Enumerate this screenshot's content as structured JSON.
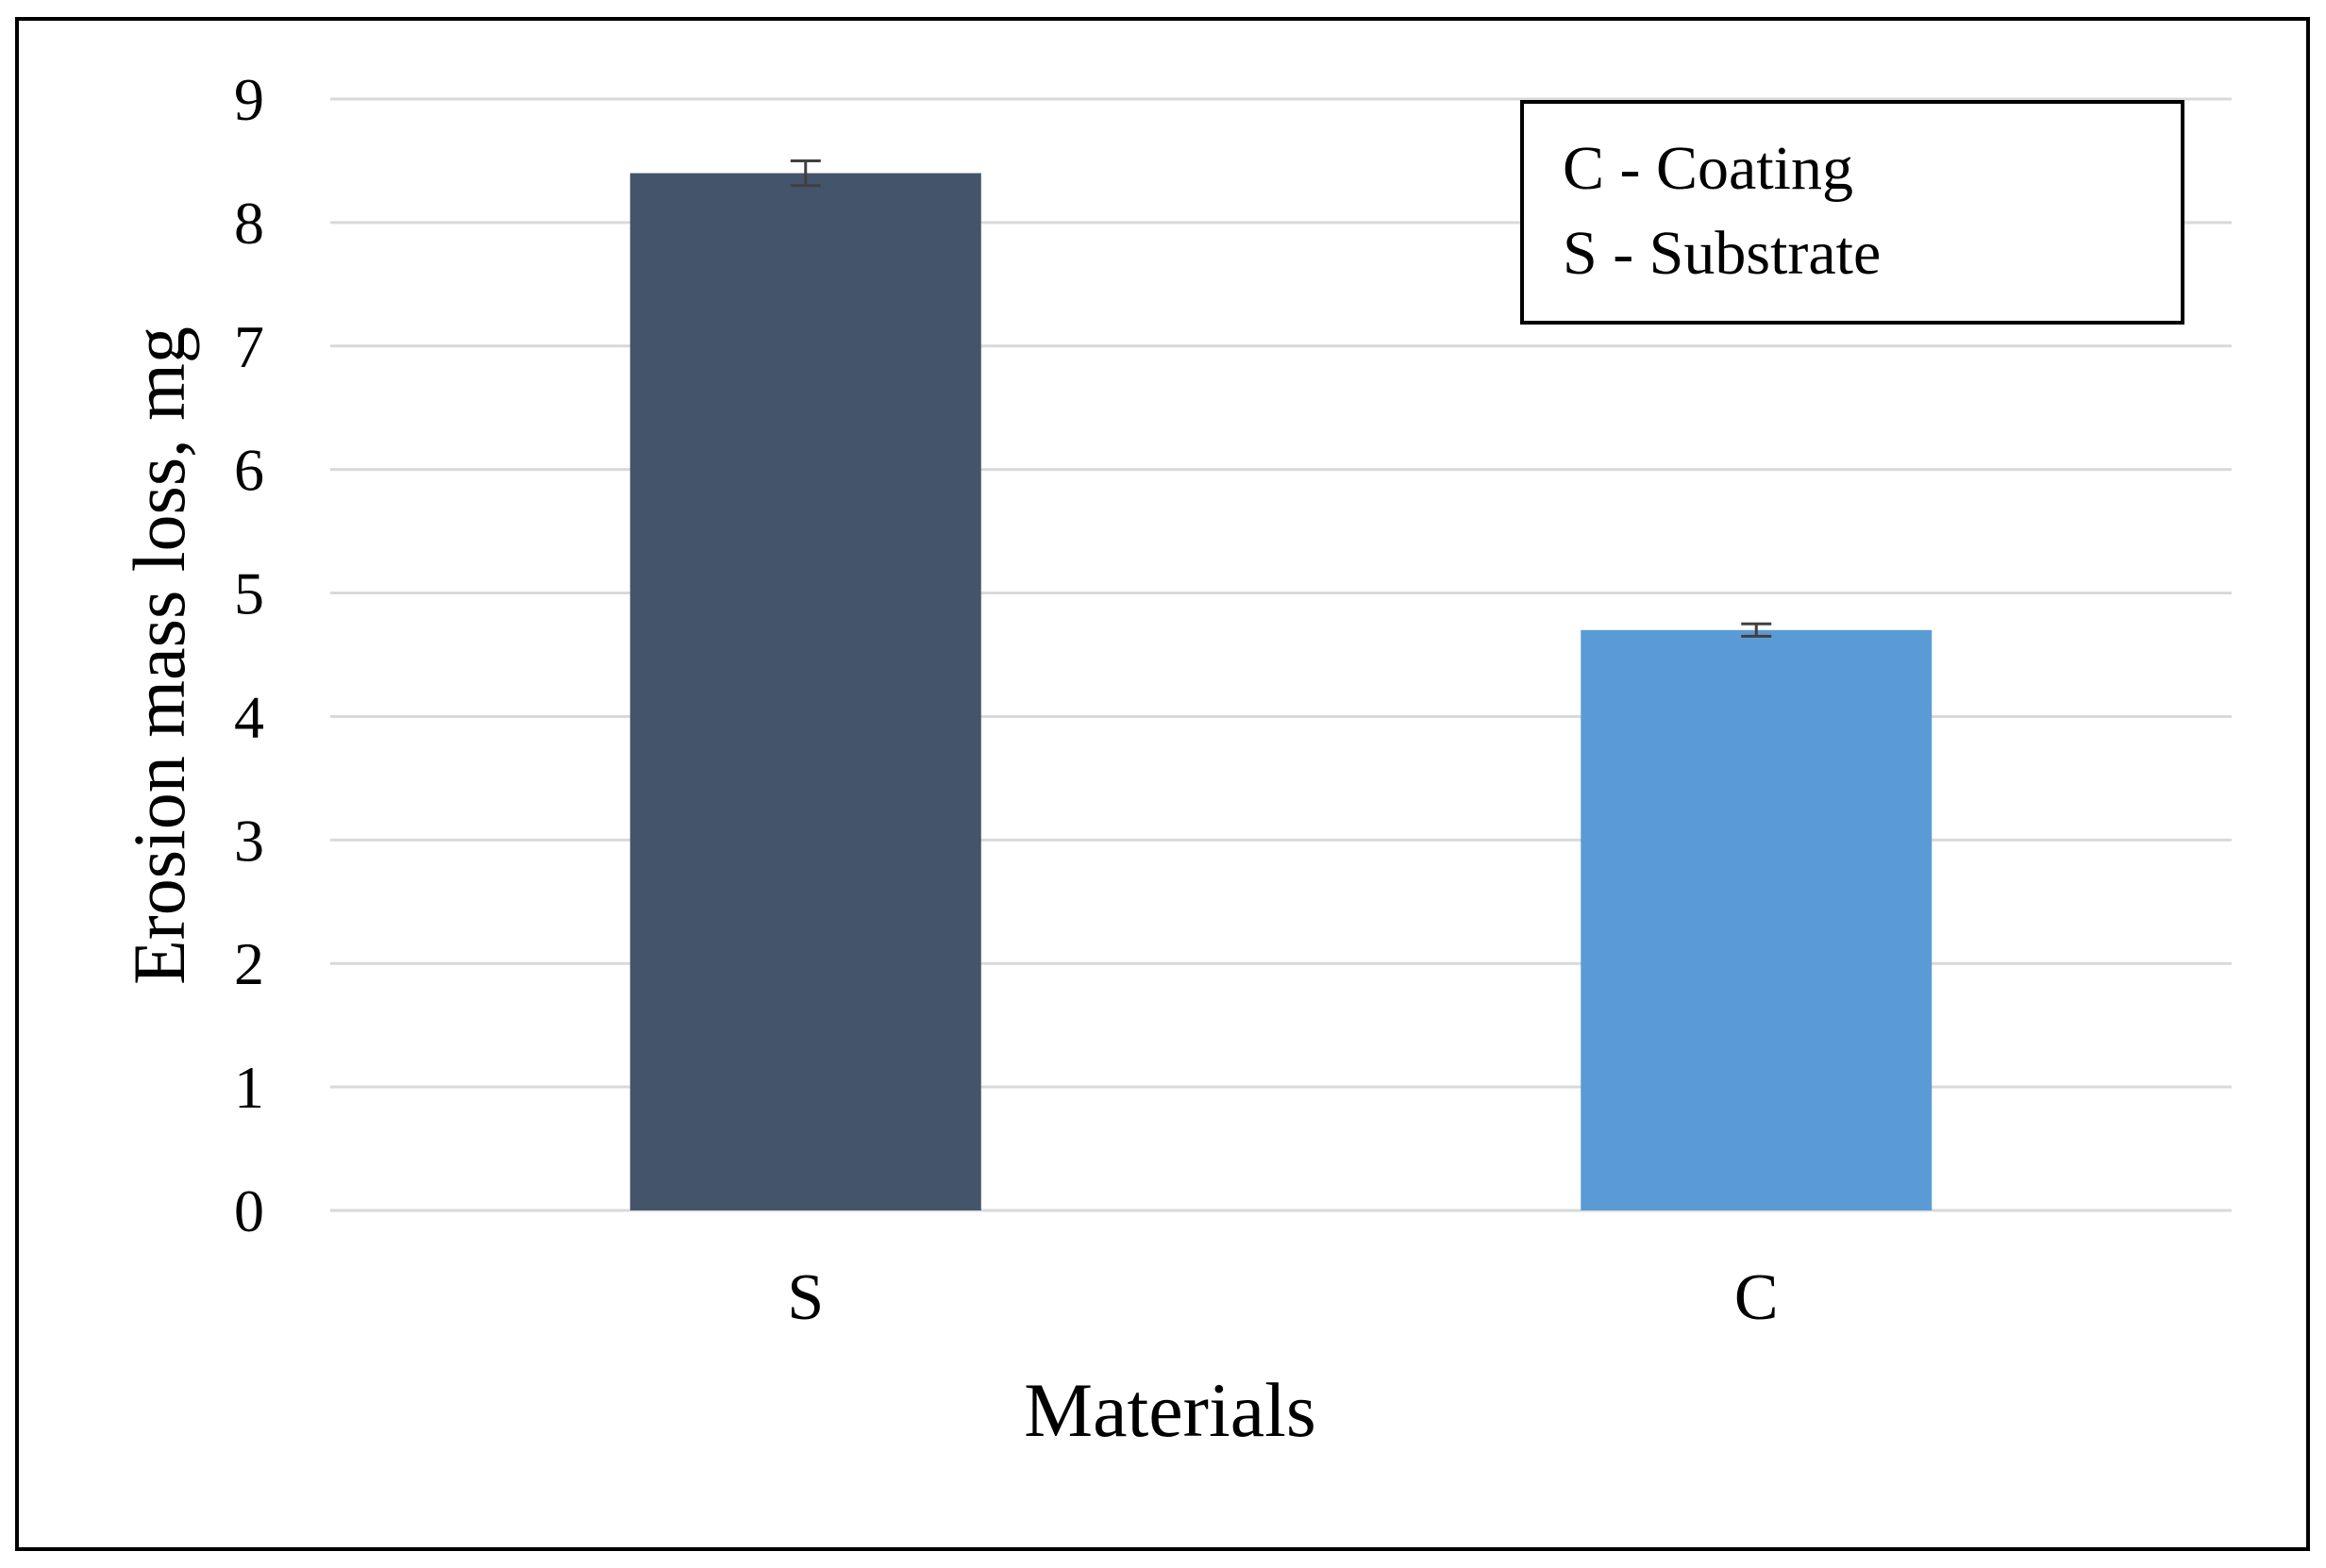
{
  "chart_data": {
    "type": "bar",
    "title": "",
    "xlabel": "Materials",
    "ylabel": "Erosion mass loss, mg",
    "categories": [
      "S",
      "C"
    ],
    "values": [
      8.4,
      4.7
    ],
    "error_bars": [
      0.1,
      0.05
    ],
    "bar_colors": [
      "#44546A",
      "#5B9BD5"
    ],
    "ylim": [
      0,
      9
    ],
    "yticks": [
      "0",
      "1",
      "2",
      "3",
      "4",
      "5",
      "6",
      "7",
      "8",
      "9"
    ],
    "grid": true,
    "legend_position": "top-right",
    "legend_lines": [
      "C - Coating",
      "S - Substrate"
    ]
  },
  "colors": {
    "gridline": "#D9D9D9",
    "frame": "#000000",
    "errorbar": "#404040"
  }
}
